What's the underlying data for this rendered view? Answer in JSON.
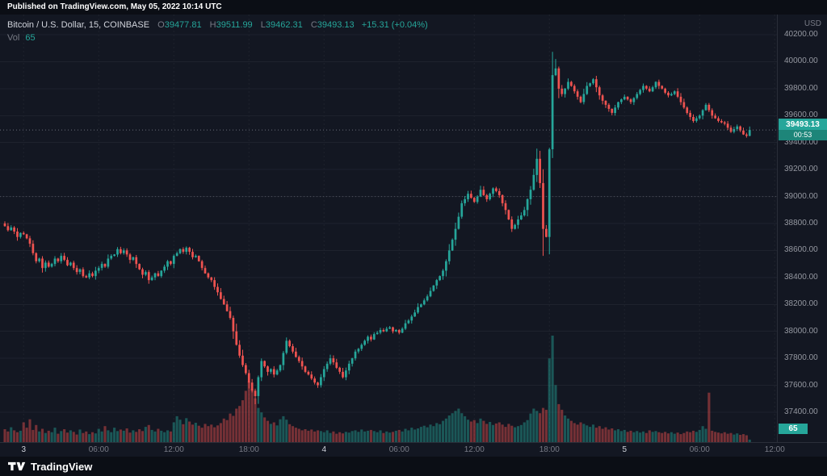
{
  "top_bar": {
    "published_text": "Published on TradingView.com, May 05, 2022 10:14 UTC"
  },
  "legend": {
    "symbol_title": "Bitcoin / U.S. Dollar, 15, COINBASE",
    "o_label": "O",
    "o_value": "39477.81",
    "h_label": "H",
    "h_value": "39511.99",
    "l_label": "L",
    "l_value": "39462.31",
    "c_label": "C",
    "c_value": "39493.13",
    "change": "+15.31 (+0.04%)",
    "vol_label": "Vol",
    "vol_value": "65"
  },
  "price_axis": {
    "unit": "USD",
    "labels": [
      "40200.00",
      "40000.00",
      "39800.00",
      "39600.00",
      "39400.00",
      "39200.00",
      "39000.00",
      "38800.00",
      "38600.00",
      "38400.00",
      "38200.00",
      "38000.00",
      "37800.00",
      "37600.00",
      "37400.00"
    ],
    "price_badge": {
      "price": "39493.13",
      "countdown": "00:53"
    },
    "vol_badge": "65"
  },
  "time_axis": {
    "labels": [
      {
        "text": "3",
        "major": true
      },
      {
        "text": "06:00",
        "major": false
      },
      {
        "text": "12:00",
        "major": false
      },
      {
        "text": "18:00",
        "major": false
      },
      {
        "text": "4",
        "major": true
      },
      {
        "text": "06:00",
        "major": false
      },
      {
        "text": "12:00",
        "major": false
      },
      {
        "text": "18:00",
        "major": false
      },
      {
        "text": "5",
        "major": true
      },
      {
        "text": "06:00",
        "major": false
      },
      {
        "text": "12:00",
        "major": false
      }
    ]
  },
  "footer": {
    "brand": "TradingView"
  },
  "colors": {
    "background": "#131722",
    "grid": "#1e222d",
    "up": "#26a69a",
    "down": "#ef5350",
    "vol_up": "rgba(38,166,154,0.45)",
    "vol_down": "rgba(239,83,80,0.45)",
    "axis_text": "#9598a1",
    "muted_text": "#787b86",
    "bright_text": "#d1d4dc",
    "badge": "#26a69a",
    "price_line": "#787b86"
  },
  "chart_data": {
    "type": "candlestick",
    "title": "Bitcoin / U.S. Dollar, 15, COINBASE",
    "symbol": "Bitcoin / U.S. Dollar",
    "exchange": "COINBASE",
    "interval_minutes": 15,
    "currency": "USD",
    "ylim": [
      37400,
      40200
    ],
    "y_grid_step": 200,
    "y_ticks": [
      40200,
      40000,
      39800,
      39600,
      39400,
      39200,
      39000,
      38800,
      38600,
      38400,
      38200,
      38000,
      37800,
      37600,
      37400
    ],
    "x_ticks": [
      "3",
      "06:00",
      "12:00",
      "18:00",
      "4",
      "06:00",
      "12:00",
      "18:00",
      "5",
      "06:00",
      "12:00"
    ],
    "grid": true,
    "legend_position": "top-left",
    "last_candle": {
      "open": 39477.81,
      "high": 39511.99,
      "low": 39462.31,
      "close": 39493.13,
      "change": "+15.31 (+0.04%)",
      "volume": 65
    },
    "price_line": 39493.13,
    "level_line": 39000,
    "spike_high": 40073,
    "session_low": 37460,
    "first_open": 38800,
    "closes": [
      38780,
      38750,
      38770,
      38740,
      38700,
      38730,
      38720,
      38690,
      38650,
      38580,
      38520,
      38540,
      38470,
      38510,
      38480,
      38500,
      38540,
      38520,
      38560,
      38530,
      38490,
      38510,
      38470,
      38440,
      38460,
      38410,
      38400,
      38430,
      38410,
      38450,
      38470,
      38500,
      38480,
      38540,
      38560,
      38570,
      38610,
      38580,
      38600,
      38570,
      38530,
      38550,
      38500,
      38460,
      38420,
      38440,
      38380,
      38400,
      38430,
      38410,
      38450,
      38480,
      38520,
      38500,
      38560,
      38580,
      38610,
      38590,
      38620,
      38590,
      38550,
      38560,
      38520,
      38470,
      38430,
      38400,
      38380,
      38330,
      38290,
      38240,
      38200,
      38150,
      38100,
      38000,
      37900,
      37820,
      37750,
      37690,
      37620,
      37560,
      37520,
      37660,
      37780,
      37740,
      37700,
      37720,
      37680,
      37710,
      37750,
      37840,
      37930,
      37890,
      37850,
      37810,
      37780,
      37740,
      37700,
      37680,
      37650,
      37620,
      37600,
      37660,
      37720,
      37760,
      37800,
      37770,
      37730,
      37700,
      37660,
      37710,
      37760,
      37800,
      37850,
      37870,
      37900,
      37930,
      37960,
      37940,
      37980,
      37990,
      38010,
      38000,
      38020,
      38030,
      38000,
      38010,
      37990,
      38020,
      38060,
      38080,
      38110,
      38140,
      38180,
      38200,
      38230,
      38260,
      38300,
      38340,
      38380,
      38410,
      38450,
      38520,
      38600,
      38680,
      38760,
      38850,
      38950,
      38980,
      39020,
      38990,
      38960,
      39000,
      39050,
      39010,
      38980,
      39020,
      39060,
      39040,
      39010,
      38950,
      38900,
      38830,
      38760,
      38790,
      38830,
      38860,
      38900,
      38980,
      39050,
      39160,
      39280,
      39100,
      38760,
      38700,
      39350,
      39900,
      39950,
      39800,
      39760,
      39800,
      39850,
      39820,
      39780,
      39740,
      39700,
      39760,
      39820,
      39840,
      39870,
      39810,
      39750,
      39710,
      39680,
      39650,
      39620,
      39660,
      39700,
      39720,
      39740,
      39720,
      39700,
      39730,
      39760,
      39790,
      39820,
      39800,
      39780,
      39810,
      39850,
      39820,
      39800,
      39770,
      39750,
      39760,
      39780,
      39740,
      39700,
      39660,
      39620,
      39590,
      39560,
      39580,
      39600,
      39640,
      39680,
      39640,
      39600,
      39580,
      39560,
      39550,
      39540,
      39510,
      39480,
      39500,
      39520,
      39490,
      39460,
      39450,
      39493.13
    ],
    "volumes": [
      340,
      280,
      390,
      310,
      260,
      300,
      520,
      380,
      600,
      320,
      450,
      280,
      350,
      240,
      300,
      260,
      380,
      220,
      290,
      340,
      250,
      310,
      270,
      200,
      330,
      240,
      280,
      210,
      260,
      230,
      350,
      280,
      420,
      310,
      260,
      380,
      290,
      330,
      300,
      360,
      250,
      310,
      270,
      340,
      290,
      400,
      450,
      320,
      280,
      350,
      300,
      260,
      310,
      280,
      520,
      680,
      590,
      470,
      630,
      540,
      460,
      510,
      430,
      380,
      480,
      420,
      460,
      390,
      440,
      500,
      620,
      580,
      750,
      690,
      880,
      950,
      1100,
      1350,
      1600,
      1400,
      1150,
      900,
      780,
      650,
      560,
      480,
      520,
      440,
      600,
      680,
      590,
      470,
      420,
      380,
      350,
      310,
      340,
      300,
      330,
      280,
      310,
      290,
      260,
      310,
      240,
      280,
      220,
      260,
      230,
      270,
      250,
      290,
      310,
      270,
      330,
      280,
      300,
      320,
      290,
      260,
      310,
      240,
      280,
      250,
      270,
      300,
      320,
      280,
      350,
      310,
      380,
      330,
      360,
      400,
      430,
      390,
      460,
      420,
      500,
      470,
      560,
      620,
      700,
      760,
      820,
      880,
      760,
      680,
      590,
      540,
      580,
      500,
      620,
      560,
      480,
      530,
      450,
      490,
      520,
      460,
      400,
      480,
      430,
      390,
      420,
      450,
      520,
      580,
      750,
      880,
      820,
      760,
      900,
      850,
      2200,
      2800,
      1500,
      1000,
      850,
      700,
      620,
      560,
      500,
      460,
      520,
      480,
      440,
      400,
      460,
      380,
      420,
      350,
      390,
      330,
      360,
      310,
      340,
      290,
      320,
      270,
      300,
      260,
      290,
      250,
      280,
      240,
      310,
      270,
      290,
      260,
      240,
      270,
      230,
      260,
      220,
      250,
      210,
      240,
      280,
      260,
      300,
      270,
      320,
      420,
      350,
      1300,
      300,
      270,
      250,
      230,
      260,
      220,
      240,
      200,
      230,
      190,
      210,
      180,
      65
    ],
    "overrides": {
      "80": {
        "low": 37460
      },
      "170": {
        "high": 39355
      },
      "172": {
        "low": 38560
      },
      "175": {
        "high": 40073
      },
      "176": {
        "high": 40020
      }
    }
  }
}
